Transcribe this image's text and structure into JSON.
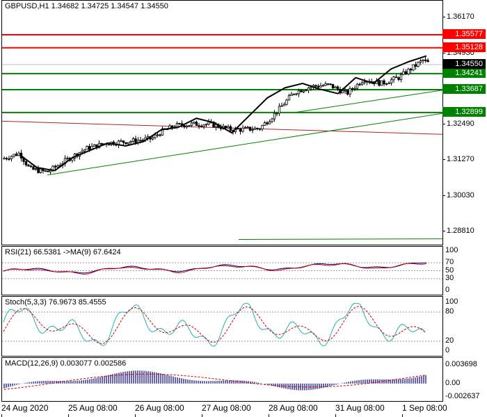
{
  "main": {
    "title": "GBPUSD,H1  1.34682 1.34725 1.34547 1.34550",
    "price_labels": [
      "1.36170",
      "1.34930",
      "1.33690",
      "1.32490",
      "1.31270",
      "1.30030",
      "1.28810"
    ],
    "price_values": [
      1.3617,
      1.3493,
      1.3369,
      1.3249,
      1.3127,
      1.3003,
      1.2881
    ],
    "levels": [
      {
        "value": "1.35577",
        "price": 1.35577,
        "color": "#ff0000"
      },
      {
        "value": "1.35128",
        "price": 1.35128,
        "color": "#ff0000"
      },
      {
        "value": "1.34241",
        "price": 1.34241,
        "color": "#008000"
      },
      {
        "value": "1.33687",
        "price": 1.33687,
        "color": "#008000"
      },
      {
        "value": "1.32899",
        "price": 1.32899,
        "color": "#008000"
      }
    ],
    "current": {
      "value": "1.34550",
      "price": 1.3455,
      "color": "#000000"
    }
  },
  "rsi": {
    "title": "RSI(21) 66.5381  ->MA(9) 67.6424",
    "labels": [
      "100",
      "70",
      "50",
      "30",
      "0"
    ],
    "values": [
      100,
      70,
      50,
      30,
      0
    ]
  },
  "stoch": {
    "title": "Stoch(5,3,3) 76.9673 85.4555",
    "labels": [
      "100",
      "80",
      "20",
      "0"
    ],
    "values": [
      100,
      80,
      20,
      0
    ]
  },
  "macd": {
    "title": "MACD(12,26,9) 0.003077 0.002586",
    "labels": [
      "0.003698",
      "0.00",
      "-0.002637"
    ],
    "values": [
      0.003698,
      0,
      -0.002637
    ]
  },
  "x_labels": [
    "24 Aug 2020",
    "25 Aug 08:00",
    "26 Aug 08:00",
    "27 Aug 08:00",
    "28 Aug 08:00",
    "31 Aug 08:00",
    "1 Sep 08:00"
  ],
  "chart_data": {
    "type": "candlestick",
    "symbol": "GBPUSD",
    "timeframe": "H1",
    "ylim": [
      1.2835,
      1.3675
    ],
    "ma_close": [
      1.3145,
      1.31,
      1.309,
      1.3135,
      1.316,
      1.3185,
      1.3175,
      1.319,
      1.323,
      1.324,
      1.327,
      1.3255,
      1.322,
      1.328,
      1.334,
      1.3375,
      1.339,
      1.337,
      1.3355,
      1.341,
      1.339,
      1.344,
      1.3465,
      1.3485
    ]
  }
}
